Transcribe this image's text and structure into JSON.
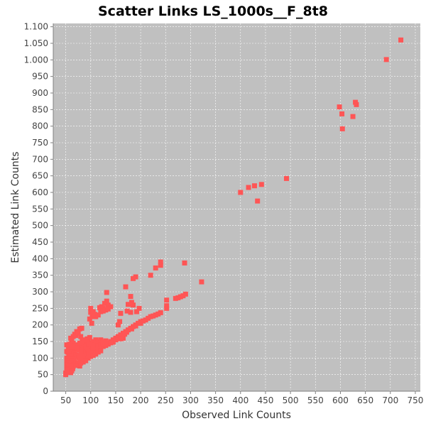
{
  "chart_data": {
    "type": "scatter",
    "title": "Scatter Links LS_1000s__F_8t8",
    "xlabel": "Observed Link Counts",
    "ylabel": "Estimated Link Counts",
    "xlim": [
      25,
      760
    ],
    "ylim": [
      0,
      1110
    ],
    "x_ticks": [
      50,
      100,
      150,
      200,
      250,
      300,
      350,
      400,
      450,
      500,
      550,
      600,
      650,
      700,
      750
    ],
    "y_ticks": [
      0,
      50,
      100,
      150,
      200,
      250,
      300,
      350,
      400,
      450,
      500,
      550,
      600,
      650,
      700,
      750,
      800,
      850,
      900,
      950,
      1000,
      1050,
      1100
    ],
    "y_tick_labels": [
      "0",
      "50",
      "100",
      "150",
      "200",
      "250",
      "300",
      "350",
      "400",
      "450",
      "500",
      "550",
      "600",
      "650",
      "700",
      "750",
      "800",
      "850",
      "900",
      "950",
      "1.000",
      "1.050",
      "1.100"
    ],
    "grid": true,
    "marker": "square",
    "colors": {
      "plot_bg": "#c0c0c0",
      "point": "#ff5555",
      "grid": "#ffffff"
    },
    "series": [
      {
        "points": [
          [
            721,
            1060
          ],
          [
            692,
            1001
          ],
          [
            630,
            872
          ],
          [
            632,
            865
          ],
          [
            598,
            858
          ],
          [
            603,
            837
          ],
          [
            625,
            829
          ],
          [
            604,
            792
          ],
          [
            492,
            642
          ],
          [
            442,
            624
          ],
          [
            428,
            620
          ],
          [
            416,
            615
          ],
          [
            400,
            600
          ],
          [
            434,
            574
          ],
          [
            322,
            330
          ],
          [
            288,
            387
          ],
          [
            240,
            390
          ],
          [
            240,
            380
          ],
          [
            230,
            372
          ],
          [
            220,
            350
          ],
          [
            190,
            345
          ],
          [
            185,
            340
          ],
          [
            170,
            315
          ],
          [
            132,
            298
          ],
          [
            180,
            286
          ],
          [
            182,
            268
          ],
          [
            185,
            260
          ],
          [
            175,
            262
          ],
          [
            173,
            242
          ],
          [
            180,
            238
          ],
          [
            197,
            250
          ],
          [
            192,
            240
          ],
          [
            160,
            235
          ],
          [
            158,
            210
          ],
          [
            155,
            200
          ],
          [
            290,
            293
          ],
          [
            285,
            288
          ],
          [
            280,
            285
          ],
          [
            275,
            282
          ],
          [
            270,
            280
          ],
          [
            252,
            275
          ],
          [
            252,
            258
          ],
          [
            252,
            250
          ],
          [
            240,
            237
          ],
          [
            235,
            233
          ],
          [
            230,
            230
          ],
          [
            225,
            227
          ],
          [
            220,
            225
          ],
          [
            215,
            220
          ],
          [
            210,
            215
          ],
          [
            205,
            212
          ],
          [
            200,
            210
          ],
          [
            195,
            205
          ],
          [
            190,
            200
          ],
          [
            185,
            195
          ],
          [
            180,
            190
          ],
          [
            175,
            185
          ],
          [
            170,
            180
          ],
          [
            165,
            175
          ],
          [
            160,
            170
          ],
          [
            155,
            165
          ],
          [
            150,
            160
          ],
          [
            145,
            155
          ],
          [
            140,
            150
          ],
          [
            135,
            145
          ],
          [
            130,
            140
          ],
          [
            125,
            135
          ],
          [
            120,
            130
          ],
          [
            115,
            125
          ],
          [
            110,
            120
          ],
          [
            105,
            115
          ],
          [
            100,
            110
          ],
          [
            95,
            105
          ],
          [
            90,
            100
          ],
          [
            85,
            95
          ],
          [
            80,
            90
          ],
          [
            75,
            85
          ],
          [
            70,
            80
          ],
          [
            65,
            75
          ],
          [
            60,
            70
          ],
          [
            55,
            65
          ],
          [
            52,
            60
          ],
          [
            50,
            55
          ],
          [
            50,
            50
          ],
          [
            165,
            160
          ],
          [
            150,
            155
          ],
          [
            145,
            148
          ],
          [
            140,
            146
          ],
          [
            135,
            142
          ],
          [
            130,
            138
          ],
          [
            160,
            158
          ],
          [
            200,
            205
          ],
          [
            190,
            197
          ],
          [
            182,
            188
          ],
          [
            172,
            178
          ],
          [
            168,
            172
          ],
          [
            135,
            260
          ],
          [
            128,
            265
          ],
          [
            132,
            272
          ],
          [
            122,
            255
          ],
          [
            118,
            252
          ],
          [
            125,
            250
          ],
          [
            140,
            255
          ],
          [
            100,
            250
          ],
          [
            100,
            238
          ],
          [
            102,
            205
          ],
          [
            98,
            218
          ],
          [
            103,
            225
          ],
          [
            108,
            232
          ],
          [
            105,
            240
          ],
          [
            110,
            225
          ],
          [
            115,
            230
          ],
          [
            120,
            240
          ],
          [
            125,
            242
          ],
          [
            130,
            245
          ],
          [
            135,
            248
          ],
          [
            78,
            188
          ],
          [
            82,
            190
          ],
          [
            72,
            180
          ],
          [
            68,
            172
          ],
          [
            65,
            165
          ],
          [
            60,
            160
          ],
          [
            62,
            150
          ],
          [
            70,
            168
          ],
          [
            75,
            175
          ],
          [
            80,
            165
          ],
          [
            85,
            140
          ],
          [
            90,
            145
          ],
          [
            95,
            150
          ],
          [
            100,
            145
          ],
          [
            105,
            150
          ],
          [
            110,
            155
          ],
          [
            115,
            150
          ],
          [
            120,
            155
          ],
          [
            125,
            148
          ],
          [
            130,
            152
          ],
          [
            52,
            140
          ],
          [
            55,
            135
          ],
          [
            58,
            130
          ],
          [
            60,
            125
          ],
          [
            62,
            120
          ],
          [
            64,
            118
          ],
          [
            66,
            115
          ],
          [
            68,
            112
          ],
          [
            70,
            110
          ],
          [
            72,
            108
          ],
          [
            74,
            105
          ],
          [
            76,
            102
          ],
          [
            78,
            100
          ],
          [
            80,
            98
          ],
          [
            52,
            120
          ],
          [
            54,
            118
          ],
          [
            56,
            112
          ],
          [
            58,
            108
          ],
          [
            60,
            104
          ],
          [
            62,
            100
          ],
          [
            64,
            96
          ],
          [
            66,
            92
          ],
          [
            68,
            88
          ],
          [
            70,
            84
          ],
          [
            72,
            82
          ],
          [
            74,
            80
          ],
          [
            76,
            78
          ],
          [
            78,
            76
          ],
          [
            52,
            100
          ],
          [
            54,
            96
          ],
          [
            56,
            92
          ],
          [
            58,
            88
          ],
          [
            60,
            84
          ],
          [
            62,
            80
          ],
          [
            64,
            76
          ],
          [
            52,
            90
          ],
          [
            54,
            86
          ],
          [
            56,
            82
          ],
          [
            58,
            78
          ],
          [
            60,
            74
          ],
          [
            62,
            70
          ],
          [
            64,
            68
          ],
          [
            52,
            80
          ],
          [
            54,
            76
          ],
          [
            56,
            72
          ],
          [
            58,
            68
          ],
          [
            60,
            64
          ],
          [
            62,
            62
          ],
          [
            52,
            70
          ],
          [
            54,
            66
          ],
          [
            56,
            62
          ],
          [
            58,
            58
          ],
          [
            60,
            56
          ],
          [
            52,
            65
          ],
          [
            85,
            120
          ],
          [
            90,
            125
          ],
          [
            95,
            128
          ],
          [
            100,
            130
          ],
          [
            88,
            132
          ],
          [
            92,
            138
          ],
          [
            96,
            142
          ],
          [
            102,
            135
          ],
          [
            108,
            140
          ],
          [
            112,
            145
          ],
          [
            118,
            142
          ],
          [
            122,
            145
          ],
          [
            80,
            130
          ],
          [
            75,
            135
          ],
          [
            70,
            140
          ],
          [
            78,
            145
          ],
          [
            83,
            150
          ],
          [
            88,
            155
          ],
          [
            93,
            158
          ],
          [
            98,
            162
          ],
          [
            65,
            145
          ],
          [
            62,
            138
          ],
          [
            58,
            142
          ],
          [
            82,
            110
          ],
          [
            86,
            112
          ],
          [
            90,
            115
          ],
          [
            94,
            118
          ],
          [
            98,
            120
          ],
          [
            102,
            122
          ],
          [
            106,
            125
          ],
          [
            84,
            105
          ],
          [
            88,
            108
          ],
          [
            92,
            110
          ],
          [
            96,
            112
          ],
          [
            100,
            115
          ],
          [
            80,
            120
          ],
          [
            76,
            125
          ],
          [
            72,
            128
          ],
          [
            68,
            130
          ],
          [
            64,
            132
          ],
          [
            105,
            130
          ],
          [
            110,
            135
          ],
          [
            115,
            138
          ],
          [
            120,
            140
          ],
          [
            125,
            142
          ],
          [
            95,
            100
          ],
          [
            100,
            105
          ],
          [
            105,
            108
          ],
          [
            110,
            112
          ],
          [
            115,
            118
          ],
          [
            120,
            122
          ],
          [
            90,
            92
          ],
          [
            85,
            88
          ],
          [
            80,
            85
          ],
          [
            75,
            82
          ],
          [
            70,
            78
          ]
        ]
      }
    ]
  }
}
